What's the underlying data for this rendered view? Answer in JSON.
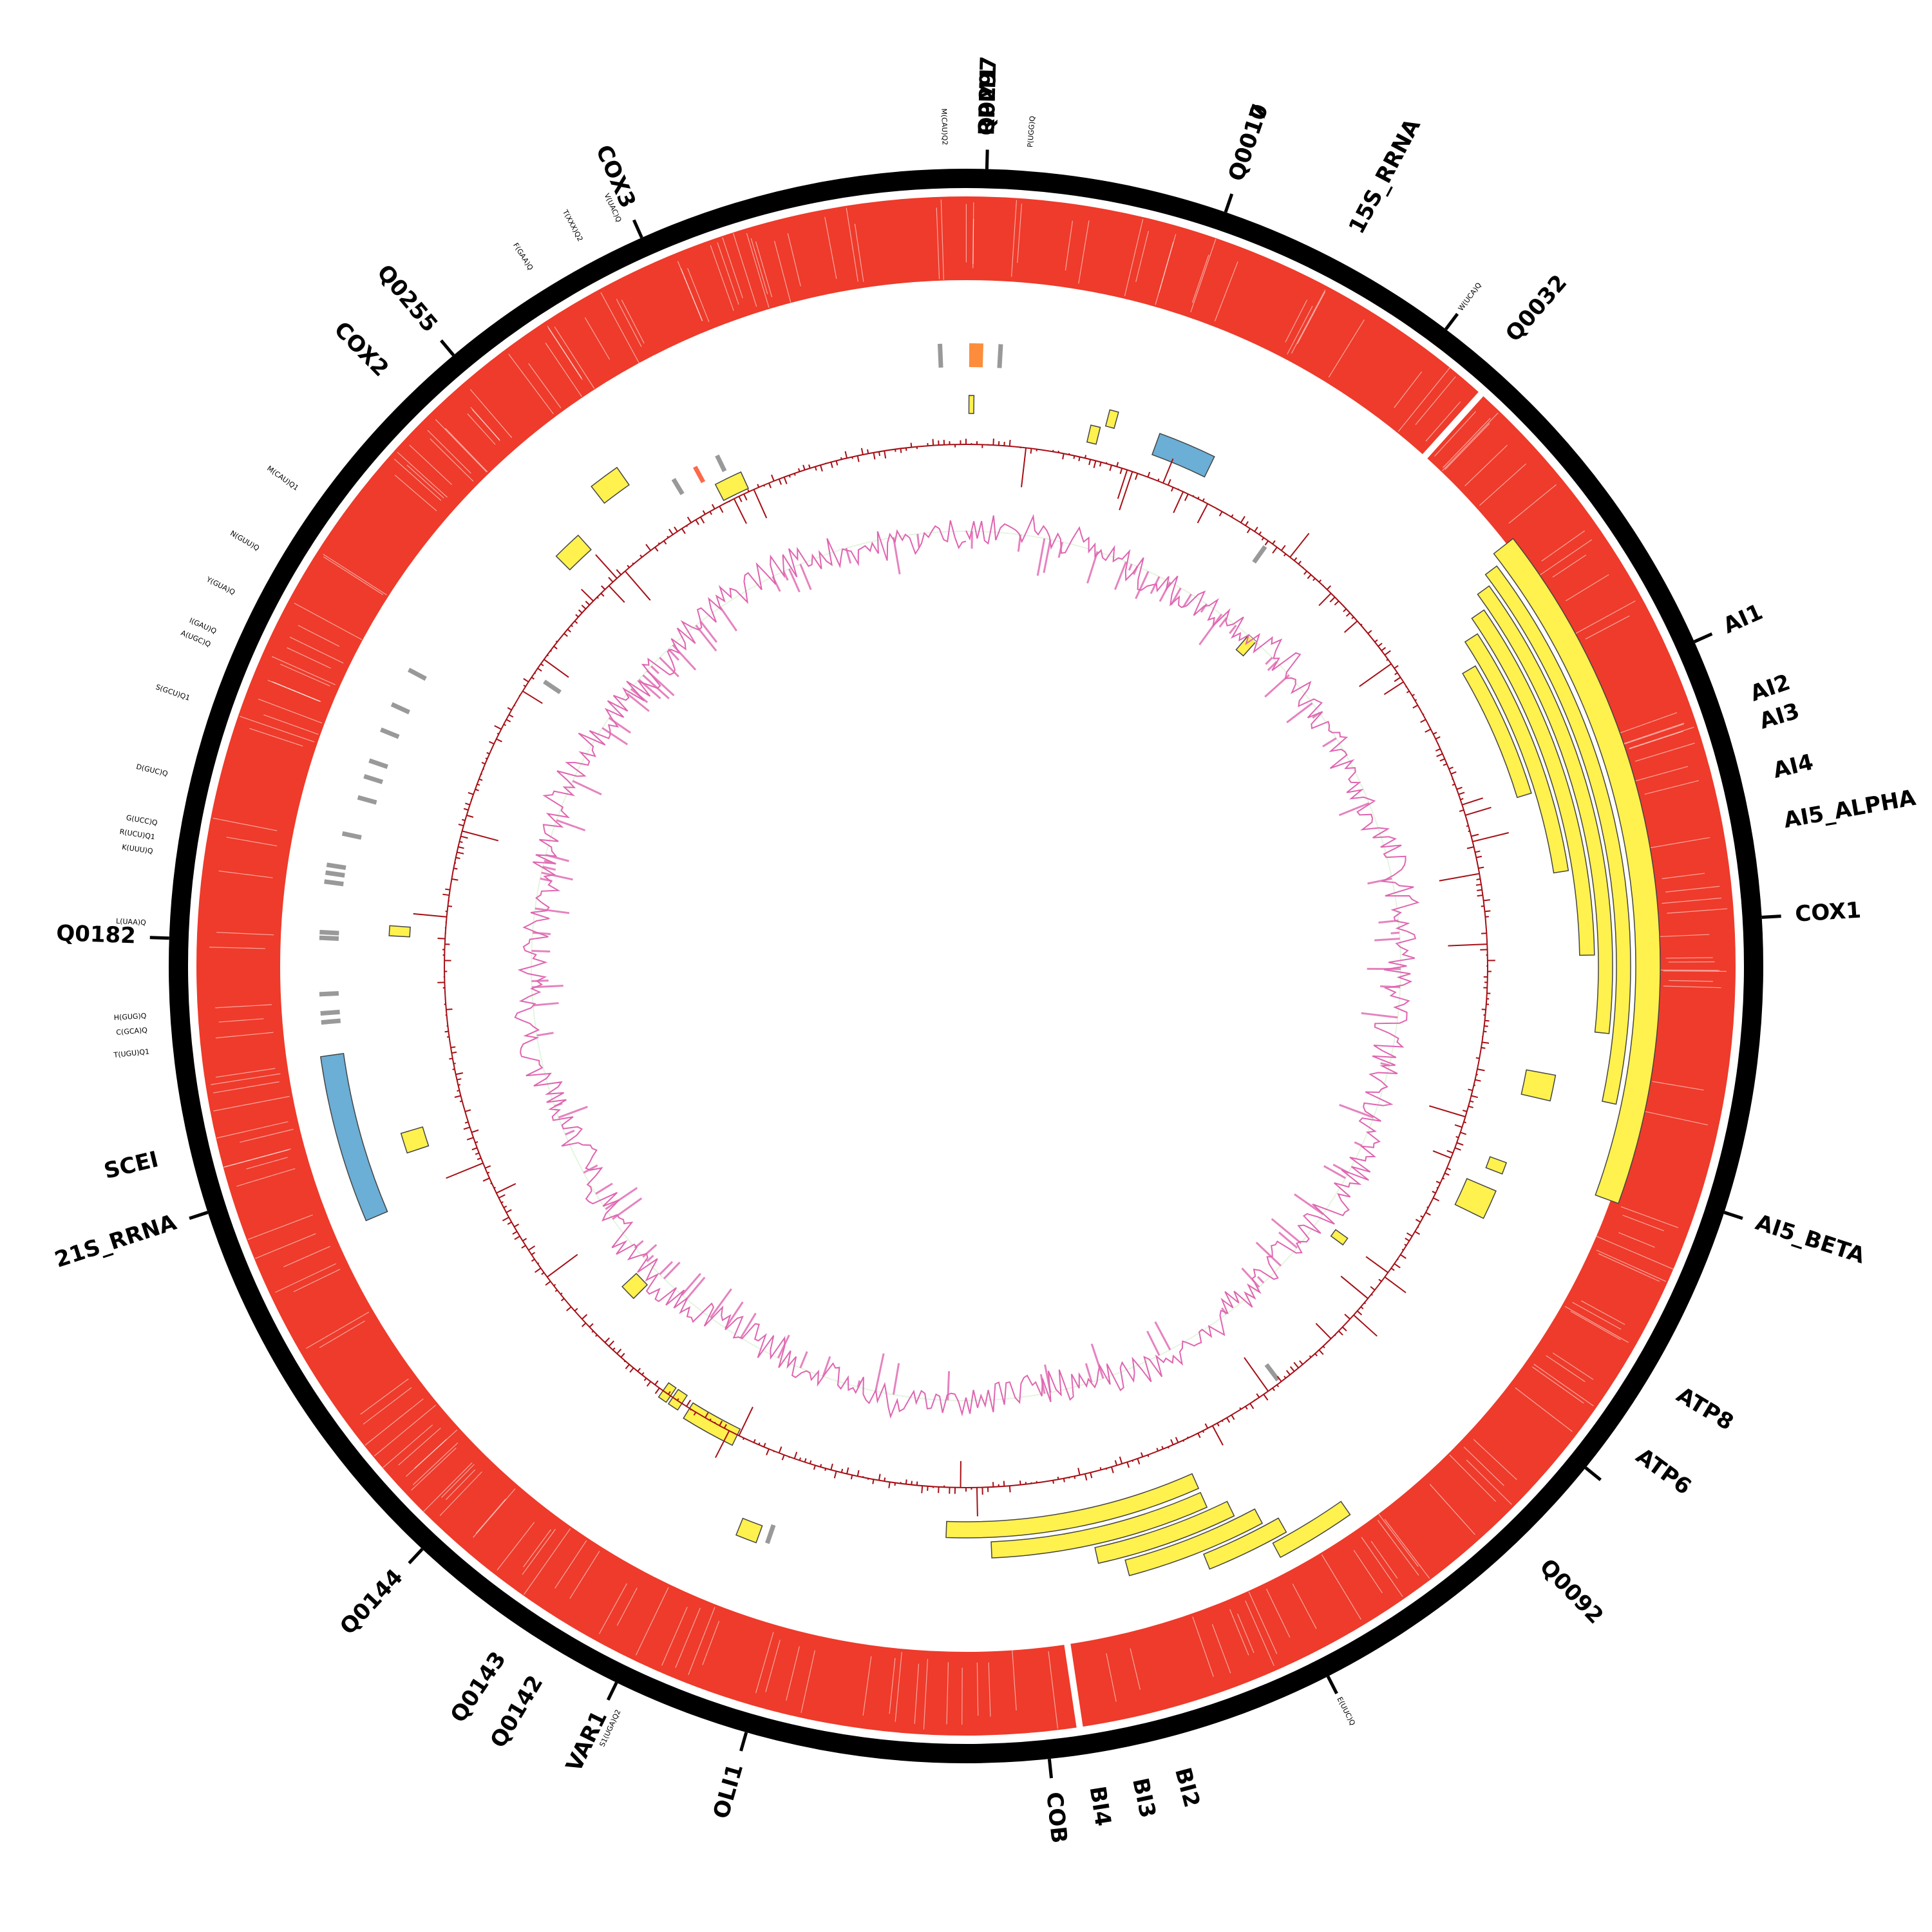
{
  "colors": {
    "backbone": "#000000",
    "coverage": "#ee3b2b",
    "gene_feature": "#fff14e",
    "rrna_feature": "#6baed6",
    "trna_feature": "#999999",
    "gc_skew": "#a50f15",
    "gc_content": "#df65b0",
    "gc_content_fill": "#e5f5e0",
    "orange_feature": "#fd8d3c",
    "red_feature": "#fb6a4a"
  },
  "gene_labels": [
    {
      "text": "Q0297",
      "angle": 1.5
    },
    {
      "text": "RPM1",
      "angle": 1.5
    },
    {
      "text": "Q0010",
      "angle": 19
    },
    {
      "text": "Q0017",
      "angle": 19
    },
    {
      "text": "15S_RRNA",
      "angle": 28
    },
    {
      "text": "Q0032",
      "angle": 41
    },
    {
      "text": "AI1",
      "angle": 66
    },
    {
      "text": "AI2",
      "angle": 71
    },
    {
      "text": "AI3",
      "angle": 73
    },
    {
      "text": "AI4",
      "angle": 76.5
    },
    {
      "text": "AI5_ALPHA",
      "angle": 80
    },
    {
      "text": "COX1",
      "angle": 86.5
    },
    {
      "text": "AI5_BETA",
      "angle": 108
    },
    {
      "text": "ATP8",
      "angle": 121
    },
    {
      "text": "ATP6",
      "angle": 126
    },
    {
      "text": "Q0092",
      "angle": 136
    },
    {
      "text": "BI2",
      "angle": 165
    },
    {
      "text": "BI3",
      "angle": 168
    },
    {
      "text": "BI4",
      "angle": 171
    },
    {
      "text": "COB",
      "angle": 174
    },
    {
      "text": "OLI1",
      "angle": 196
    },
    {
      "text": "VAR1",
      "angle": 206
    },
    {
      "text": "Q0142",
      "angle": 211
    },
    {
      "text": "Q0143",
      "angle": 214
    },
    {
      "text": "Q0144",
      "angle": 223
    },
    {
      "text": "21S_RRNA",
      "angle": 252
    },
    {
      "text": "SCEI",
      "angle": 256.5
    },
    {
      "text": "Q0182",
      "angle": 272
    },
    {
      "text": "COX2",
      "angle": 315.5
    },
    {
      "text": "Q0255",
      "angle": 320
    },
    {
      "text": "COX3",
      "angle": 336
    }
  ],
  "trna_labels": [
    {
      "text": "M(CAU)Q2",
      "angle": 358.5
    },
    {
      "text": "P(UGG)Q",
      "angle": 4.5
    },
    {
      "text": "W(UCA)Q",
      "angle": 37
    },
    {
      "text": "E(UUC)Q",
      "angle": 153
    },
    {
      "text": "S1(UGA)Q2",
      "angle": 205
    },
    {
      "text": "H(GUG)Q",
      "angle": 266.5
    },
    {
      "text": "C(GCA)Q",
      "angle": 265.5
    },
    {
      "text": "T(UGU)Q1",
      "angle": 264
    },
    {
      "text": "L(UAA)Q",
      "angle": 273
    },
    {
      "text": "K(UUU)Q",
      "angle": 278
    },
    {
      "text": "R(UCU)Q1",
      "angle": 279
    },
    {
      "text": "G(UCC)Q",
      "angle": 280
    },
    {
      "text": "D(GUC)Q",
      "angle": 283.5
    },
    {
      "text": "S(GCU)Q1",
      "angle": 289
    },
    {
      "text": "A(UGC)Q",
      "angle": 293
    },
    {
      "text": "I(GAU)Q",
      "angle": 294
    },
    {
      "text": "Y(GUA)Q",
      "angle": 297
    },
    {
      "text": "N(GUU)Q",
      "angle": 300.5
    },
    {
      "text": "M(CAU)Q1",
      "angle": 305.5
    },
    {
      "text": "F(GAA)Q",
      "angle": 328
    },
    {
      "text": "T(XXX)Q2",
      "angle": 332
    },
    {
      "text": "V(UAC)Q",
      "angle": 335
    }
  ],
  "ticks": [
    1.5,
    19,
    37,
    66,
    86.5,
    108,
    129,
    153,
    174,
    196,
    206,
    223,
    252,
    272,
    320,
    336
  ],
  "coverage_gaps": [
    42,
    171.5
  ],
  "features_yellow": [
    {
      "start": 0.3,
      "end": 0.8,
      "r0": 858,
      "r1": 886
    },
    {
      "start": 13,
      "end": 14,
      "r0": 835,
      "r1": 862
    },
    {
      "start": 14.5,
      "end": 15.4,
      "r0": 866,
      "r1": 892
    },
    {
      "start": 40.5,
      "end": 41.8,
      "r0": 646,
      "r1": 676
    },
    {
      "start": 52,
      "end": 110,
      "r0": 1040,
      "r1": 1078
    },
    {
      "start": 53,
      "end": 102,
      "r0": 1010,
      "r1": 1032
    },
    {
      "start": 54,
      "end": 96,
      "r0": 982,
      "r1": 1004
    },
    {
      "start": 55.5,
      "end": 89,
      "r0": 953,
      "r1": 976
    },
    {
      "start": 57,
      "end": 81,
      "r0": 924,
      "r1": 947
    },
    {
      "start": 59.5,
      "end": 73,
      "r0": 895,
      "r1": 918
    },
    {
      "start": 100.5,
      "end": 103,
      "r0": 885,
      "r1": 931
    },
    {
      "start": 110,
      "end": 111.2,
      "r0": 866,
      "r1": 893
    },
    {
      "start": 113,
      "end": 116,
      "r0": 845,
      "r1": 894
    },
    {
      "start": 125.5,
      "end": 126.5,
      "r0": 705,
      "r1": 728
    },
    {
      "start": 145,
      "end": 152,
      "r0": 1015,
      "r1": 1040
    },
    {
      "start": 150.5,
      "end": 158,
      "r0": 985,
      "r1": 1010
    },
    {
      "start": 152,
      "end": 165,
      "r0": 955,
      "r1": 980
    },
    {
      "start": 154,
      "end": 167.5,
      "r0": 925,
      "r1": 950
    },
    {
      "start": 156,
      "end": 177.5,
      "r0": 895,
      "r1": 920
    },
    {
      "start": 156,
      "end": 182,
      "r0": 863,
      "r1": 888
    },
    {
      "start": 200,
      "end": 202,
      "r0": 925,
      "r1": 953
    },
    {
      "start": 206,
      "end": 212,
      "r0": 800,
      "r1": 828
    },
    {
      "start": 213,
      "end": 214.2,
      "r0": 795,
      "r1": 822
    },
    {
      "start": 214.5,
      "end": 215.5,
      "r0": 795,
      "r1": 822
    },
    {
      "start": 225,
      "end": 227,
      "r0": 700,
      "r1": 730
    },
    {
      "start": 251.5,
      "end": 253.5,
      "r0": 880,
      "r1": 915
    },
    {
      "start": 273,
      "end": 274,
      "r0": 865,
      "r1": 897
    },
    {
      "start": 315,
      "end": 318,
      "r0": 870,
      "r1": 900
    },
    {
      "start": 322,
      "end": 325,
      "r0": 912,
      "r1": 945
    },
    {
      "start": 332.5,
      "end": 335.5,
      "r0": 815,
      "r1": 843
    }
  ],
  "features_blue": [
    {
      "start": 20,
      "end": 26,
      "r0": 845,
      "r1": 880
    },
    {
      "start": 247,
      "end": 262,
      "r0": 976,
      "r1": 1012
    }
  ],
  "features_grey": [
    {
      "angle": 357.6,
      "r0": 930,
      "r1": 967
    },
    {
      "angle": 3.2,
      "r0": 930,
      "r1": 967
    },
    {
      "angle": 35.5,
      "r0": 770,
      "r1": 800
    },
    {
      "angle": 143,
      "r0": 775,
      "r1": 805
    },
    {
      "angle": 199,
      "r0": 918,
      "r1": 948
    },
    {
      "angle": 265,
      "r0": 975,
      "r1": 1005
    },
    {
      "angle": 265.8,
      "r0": 975,
      "r1": 1005
    },
    {
      "angle": 267.5,
      "r0": 975,
      "r1": 1005
    },
    {
      "angle": 272.5,
      "r0": 975,
      "r1": 1005
    },
    {
      "angle": 273,
      "r0": 975,
      "r1": 1005
    },
    {
      "angle": 277.5,
      "r0": 975,
      "r1": 1005
    },
    {
      "angle": 278.3,
      "r0": 975,
      "r1": 1005
    },
    {
      "angle": 279,
      "r0": 975,
      "r1": 1005
    },
    {
      "angle": 282,
      "r0": 960,
      "r1": 990
    },
    {
      "angle": 285.5,
      "r0": 950,
      "r1": 980
    },
    {
      "angle": 287.5,
      "r0": 950,
      "r1": 980
    },
    {
      "angle": 289,
      "r0": 950,
      "r1": 980
    },
    {
      "angle": 292,
      "r0": 950,
      "r1": 980
    },
    {
      "angle": 294.5,
      "r0": 950,
      "r1": 980
    },
    {
      "angle": 298,
      "r0": 950,
      "r1": 980
    },
    {
      "angle": 304,
      "r0": 760,
      "r1": 790
    },
    {
      "angle": 329,
      "r0": 855,
      "r1": 882
    },
    {
      "angle": 334,
      "r0": 855,
      "r1": 882
    }
  ],
  "feature_orange": {
    "start": 0.3,
    "end": 1.6,
    "r0": 930,
    "r1": 967
  },
  "feature_red": {
    "angle": 331.5,
    "r0": 855,
    "r1": 882
  }
}
